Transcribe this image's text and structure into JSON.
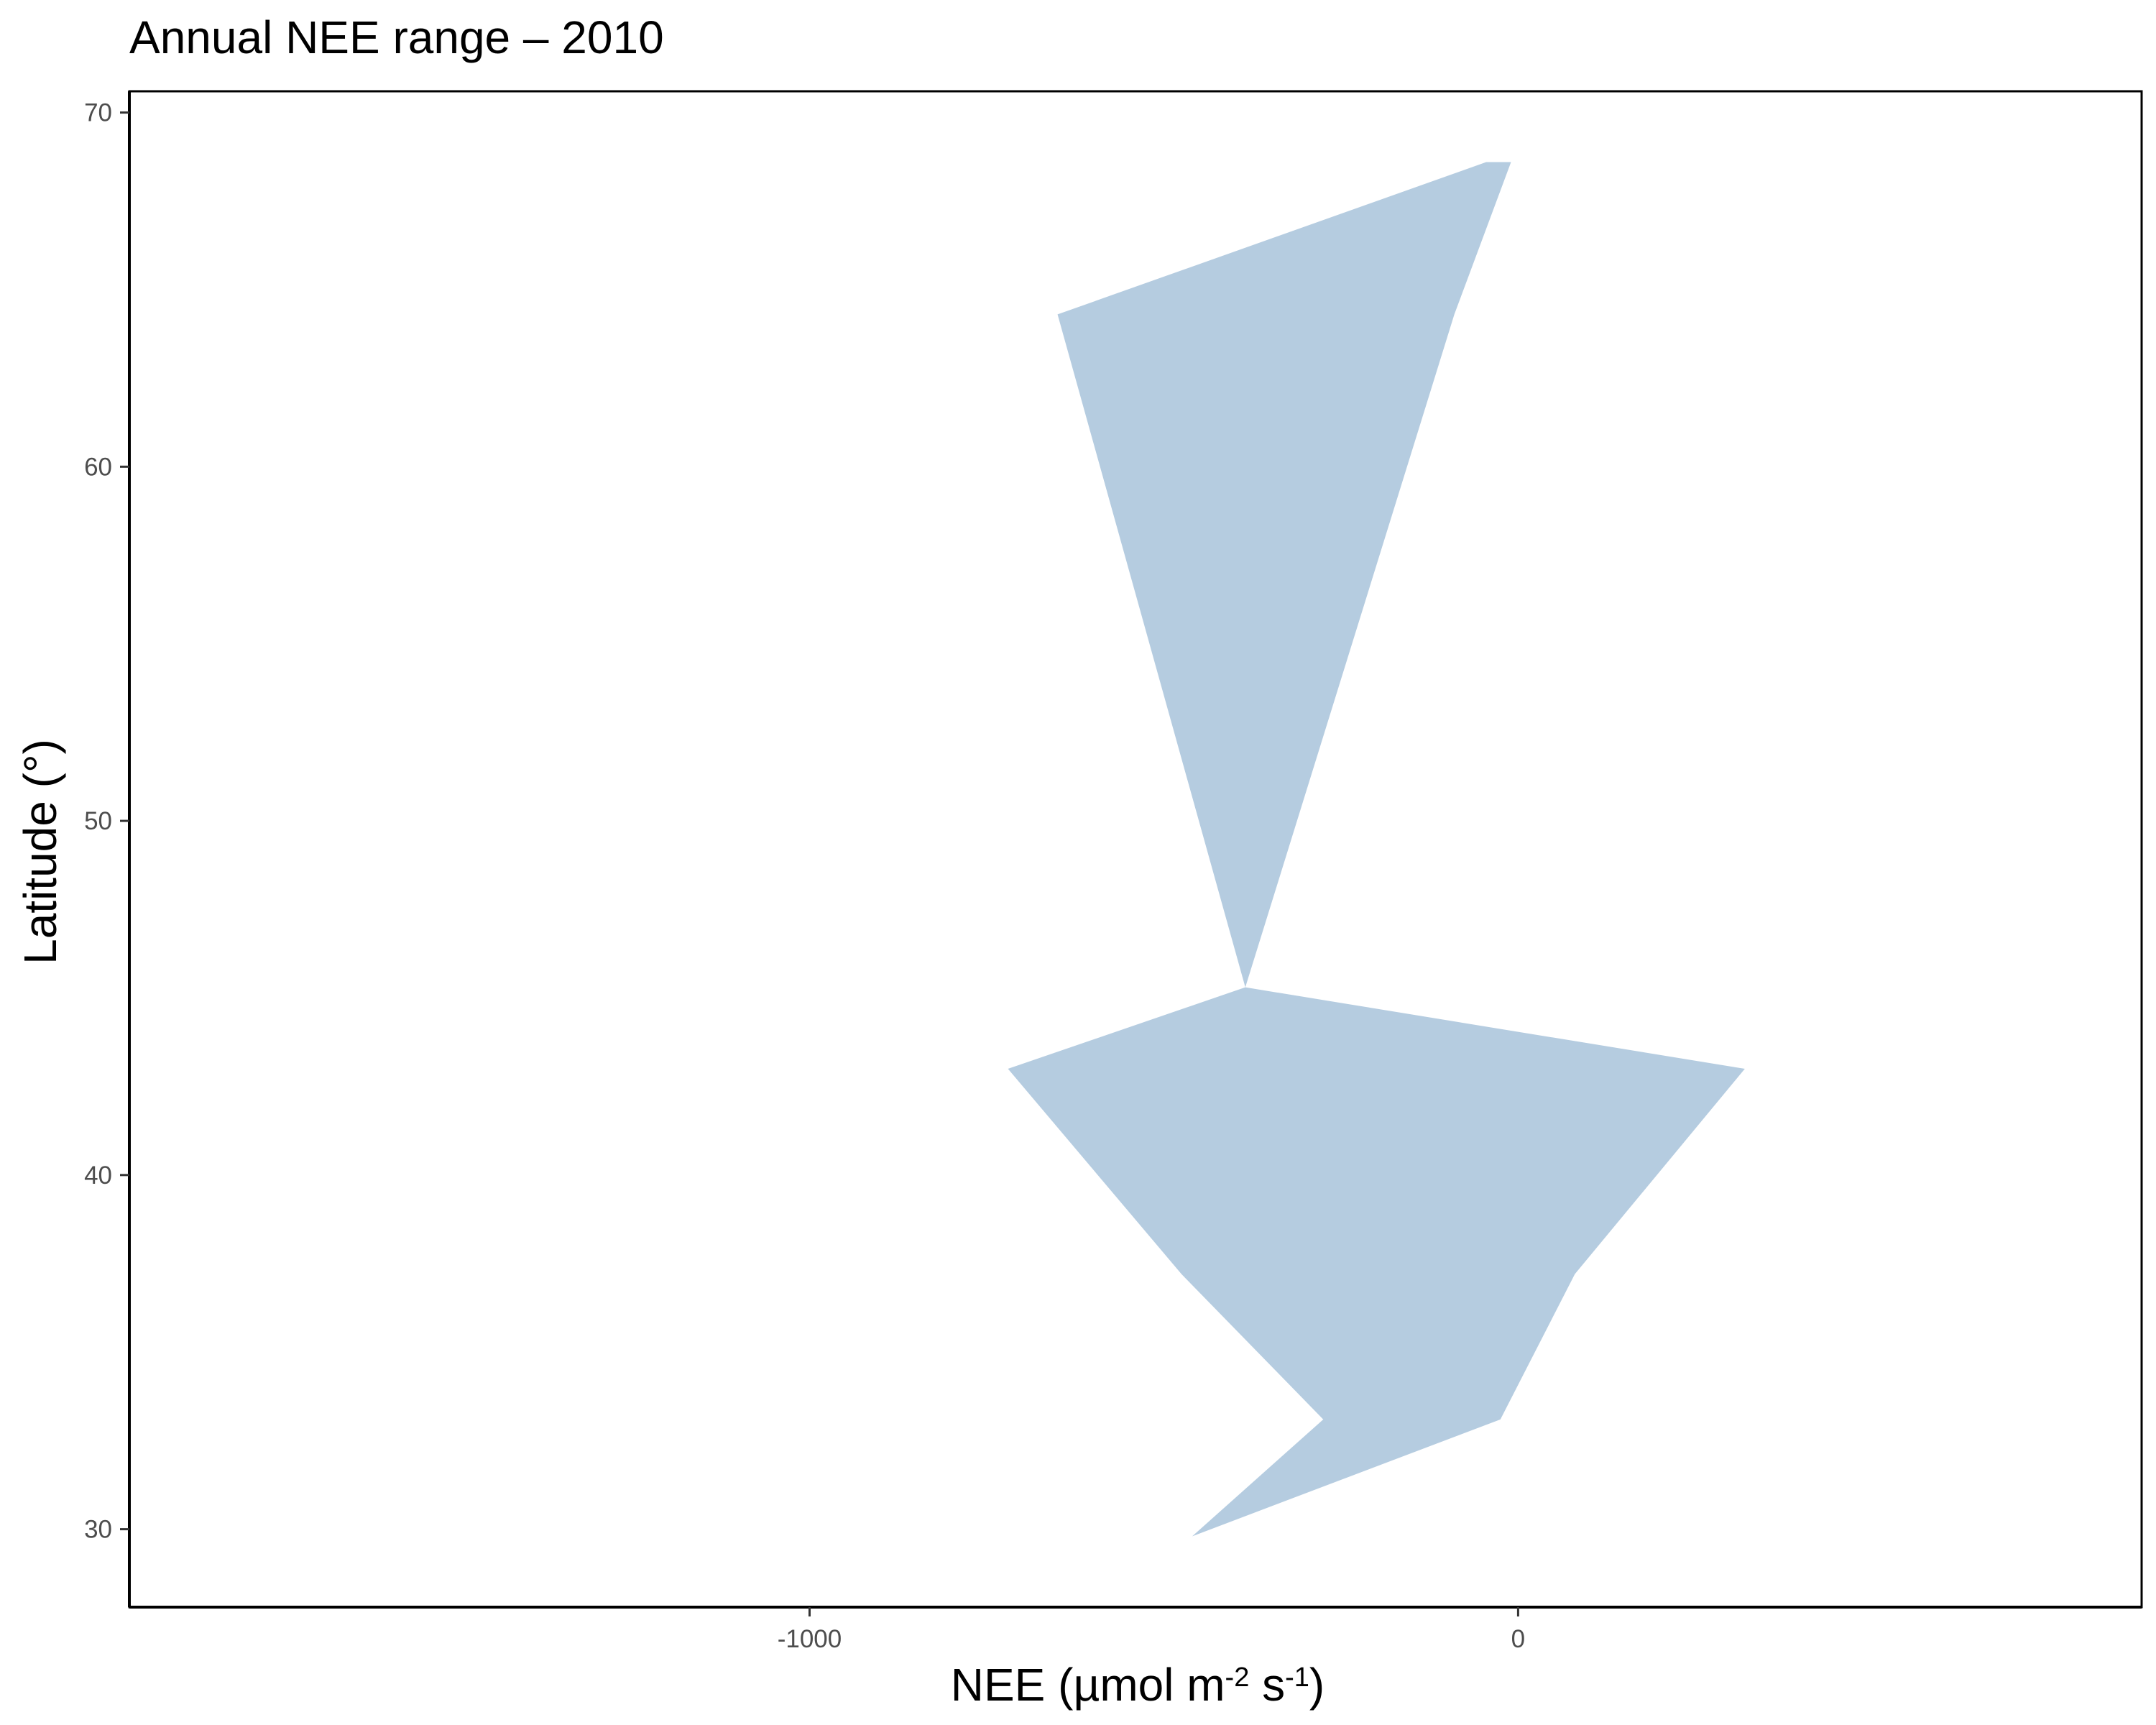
{
  "chart_data": {
    "type": "area",
    "title": "Annual NEE range – 2010",
    "xlabel": "NEE (µmol m⁻² s⁻¹)",
    "ylabel": "Latitude (°)",
    "xlim": [
      -1960,
      880
    ],
    "ylim": [
      27.8,
      70.6
    ],
    "x_ticks": [
      -1000,
      0
    ],
    "x_tick_labels": [
      "-1000",
      "0"
    ],
    "y_ticks": [
      30,
      40,
      50,
      60,
      70
    ],
    "y_tick_labels": [
      "30",
      "40",
      "50",
      "60",
      "70"
    ],
    "grid": false,
    "legend": "none",
    "fill_color": "#b5cce0",
    "series": [
      {
        "latitude": [
          29.8,
          33.1,
          37.2,
          43.0,
          45.3
        ],
        "nee_min": [
          -460,
          -275,
          -475,
          -720,
          -385
        ],
        "nee_max": [
          -460,
          -25,
          80,
          320,
          -385
        ]
      },
      {
        "latitude": [
          45.3,
          64.3,
          68.6
        ],
        "nee_min": [
          -385,
          -650,
          -45
        ],
        "nee_max": [
          -385,
          -90,
          -10
        ]
      }
    ]
  }
}
